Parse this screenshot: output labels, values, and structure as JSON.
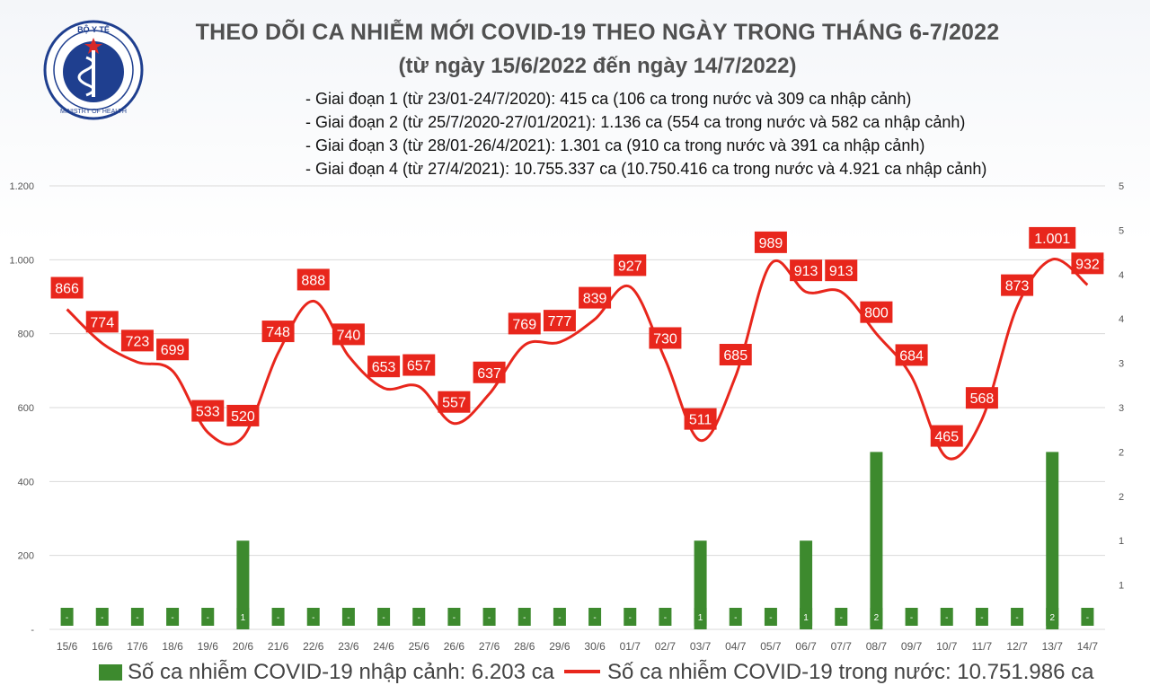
{
  "header": {
    "logo_text_top": "BỘ Y TẾ",
    "logo_text_bottom": "MINISTRY OF HEALTH",
    "title": "THEO DÕI CA NHIỄM MỚI COVID-19 THEO NGÀY TRONG THÁNG 6-7/2022",
    "subtitle": "(từ ngày 15/6/2022 đến ngày 14/7/2022)",
    "phases": [
      "- Giai đoạn 1 (từ 23/01-24/7/2020): 415 ca (106 ca trong nước và 309 ca nhập cảnh)",
      "- Giai đoạn 2 (từ 25/7/2020-27/01/2021): 1.136 ca (554 ca trong nước và 582 ca nhập cảnh)",
      "- Giai đoạn 3 (từ 28/01-26/4/2021): 1.301 ca (910 ca trong nước và 391 ca nhập cảnh)",
      "- Giai đoạn 4 (từ 27/4/2021): 10.755.337 ca (10.750.416 ca trong nước và 4.921 ca nhập cảnh)"
    ]
  },
  "colors": {
    "bar": "#3d8a2e",
    "line": "#e8261c",
    "label_bg": "#e8261c",
    "logo": "#1f3f8f"
  },
  "legend": {
    "imported": "Số ca nhiễm COVID-19 nhập cảnh: 6.203 ca",
    "domestic": "Số ca nhiễm COVID-19 trong nước: 10.751.986 ca"
  },
  "chart_data": {
    "type": "bar+line",
    "categories": [
      "15/6",
      "16/6",
      "17/6",
      "18/6",
      "19/6",
      "20/6",
      "21/6",
      "22/6",
      "23/6",
      "24/6",
      "25/6",
      "26/6",
      "27/6",
      "28/6",
      "29/6",
      "30/6",
      "01/7",
      "02/7",
      "03/7",
      "04/7",
      "05/7",
      "06/7",
      "07/7",
      "08/7",
      "09/7",
      "10/7",
      "11/7",
      "12/7",
      "13/7",
      "14/7"
    ],
    "line_series": {
      "values": [
        866,
        774,
        723,
        699,
        533,
        520,
        748,
        888,
        740,
        653,
        657,
        557,
        637,
        769,
        777,
        839,
        927,
        730,
        511,
        685,
        989,
        913,
        913,
        800,
        684,
        465,
        568,
        873,
        1001,
        932
      ],
      "labels": [
        "866",
        "774",
        "723",
        "699",
        "533",
        "520",
        "748",
        "888",
        "740",
        "653",
        "657",
        "557",
        "637",
        "769",
        "777",
        "839",
        "927",
        "730",
        "511",
        "685",
        "989",
        "913",
        "913",
        "800",
        "684",
        "465",
        "568",
        "873",
        "1.001",
        "932"
      ]
    },
    "bar_series": {
      "values": [
        0,
        0,
        0,
        0,
        0,
        1,
        0,
        0,
        0,
        0,
        0,
        0,
        0,
        0,
        0,
        0,
        0,
        0,
        1,
        0,
        0,
        1,
        0,
        2,
        0,
        0,
        0,
        0,
        2,
        0
      ],
      "labels": [
        "-",
        "-",
        "-",
        "-",
        "-",
        "1",
        "-",
        "-",
        "-",
        "-",
        "-",
        "-",
        "-",
        "-",
        "-",
        "-",
        "-",
        "-",
        "1",
        "-",
        "-",
        "1",
        "-",
        "2",
        "-",
        "-",
        "-",
        "-",
        "2",
        "-"
      ]
    },
    "y_left": {
      "ylim": [
        0,
        1200
      ],
      "ticks": [
        "-",
        "200",
        "400",
        "600",
        "800",
        "1.000",
        "1.200"
      ]
    },
    "y_right": {
      "ylim": [
        0,
        5
      ],
      "ticks": [
        "1",
        "1",
        "2",
        "2",
        "3",
        "3",
        "4",
        "4",
        "5",
        "5"
      ]
    },
    "grid": true,
    "legend_position": "bottom"
  }
}
